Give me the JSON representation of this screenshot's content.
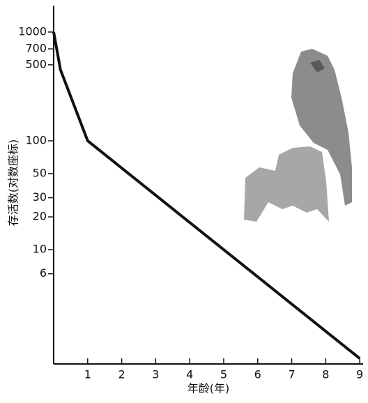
{
  "chart_data": {
    "type": "line",
    "y_label": "存活数(对数座标)",
    "x_label": "年龄(年)",
    "x": [
      0,
      0.2,
      1,
      9
    ],
    "values": [
      1000,
      450,
      100,
      1
    ],
    "color": "#111111",
    "xlim": [
      0,
      9.1
    ],
    "xticks": [
      1,
      2,
      3,
      4,
      5,
      6,
      7,
      8,
      9
    ],
    "ylim": [
      0.89,
      1750
    ],
    "yticks": [
      1000,
      700,
      500,
      100,
      50,
      30,
      20,
      10,
      6
    ],
    "log_scale_y": true
  }
}
